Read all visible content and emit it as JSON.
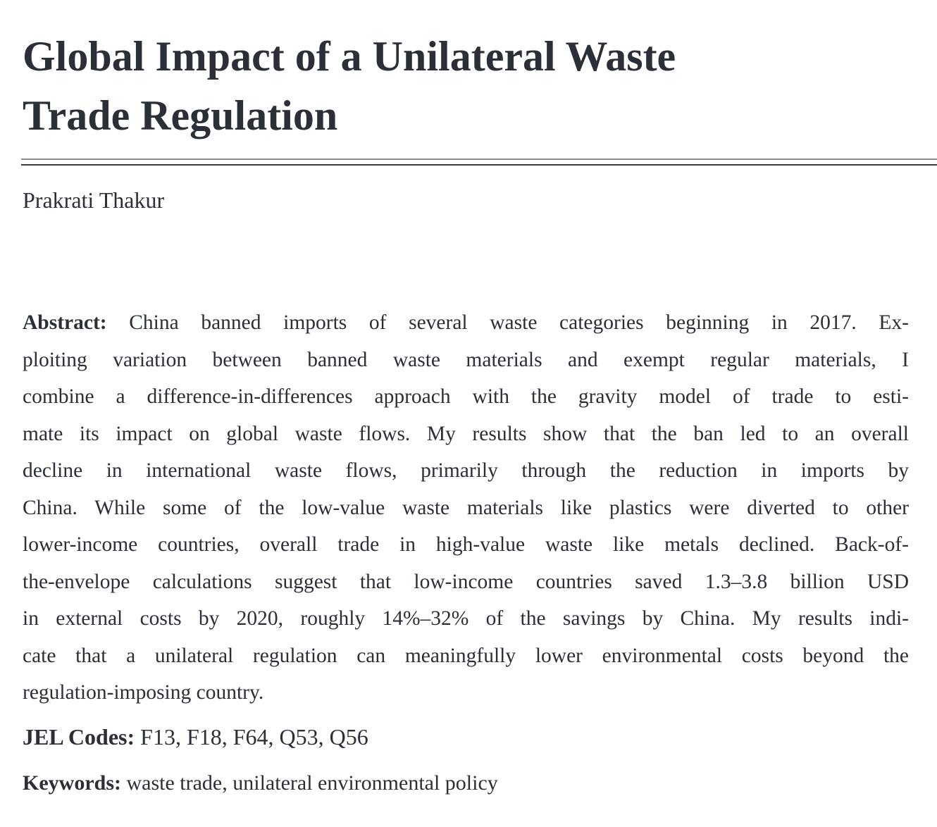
{
  "title_lines": [
    "Global Impact of a Unilateral Waste",
    "Trade Regulation"
  ],
  "author": "Prakrati Thakur",
  "abstract": {
    "label": "Abstract:",
    "lines": [
      "China banned imports of several waste categories beginning in 2017. Ex-",
      "ploiting variation between banned waste materials and exempt regular materials, I",
      "combine a difference-in-differences approach with the gravity model of trade to esti-",
      "mate its impact on global waste flows. My results show that the ban led to an overall",
      "decline in international waste flows, primarily through the reduction in imports by",
      "China. While some of the low-value waste materials like plastics were diverted to other",
      "lower-income countries, overall trade in high-value waste like metals declined. Back-of-",
      "the-envelope calculations suggest that low-income countries saved 1.3–3.8 billion USD",
      "in external costs by 2020, roughly 14%–32% of the savings by China. My results indi-",
      "cate that a unilateral regulation can meaningfully lower environmental costs beyond the",
      "regulation-imposing country."
    ]
  },
  "jel": {
    "label": "JEL Codes:",
    "value": "F13, F18, F64, Q53, Q56"
  },
  "keywords": {
    "label": "Keywords:",
    "value": "waste trade, unilateral environmental policy"
  }
}
